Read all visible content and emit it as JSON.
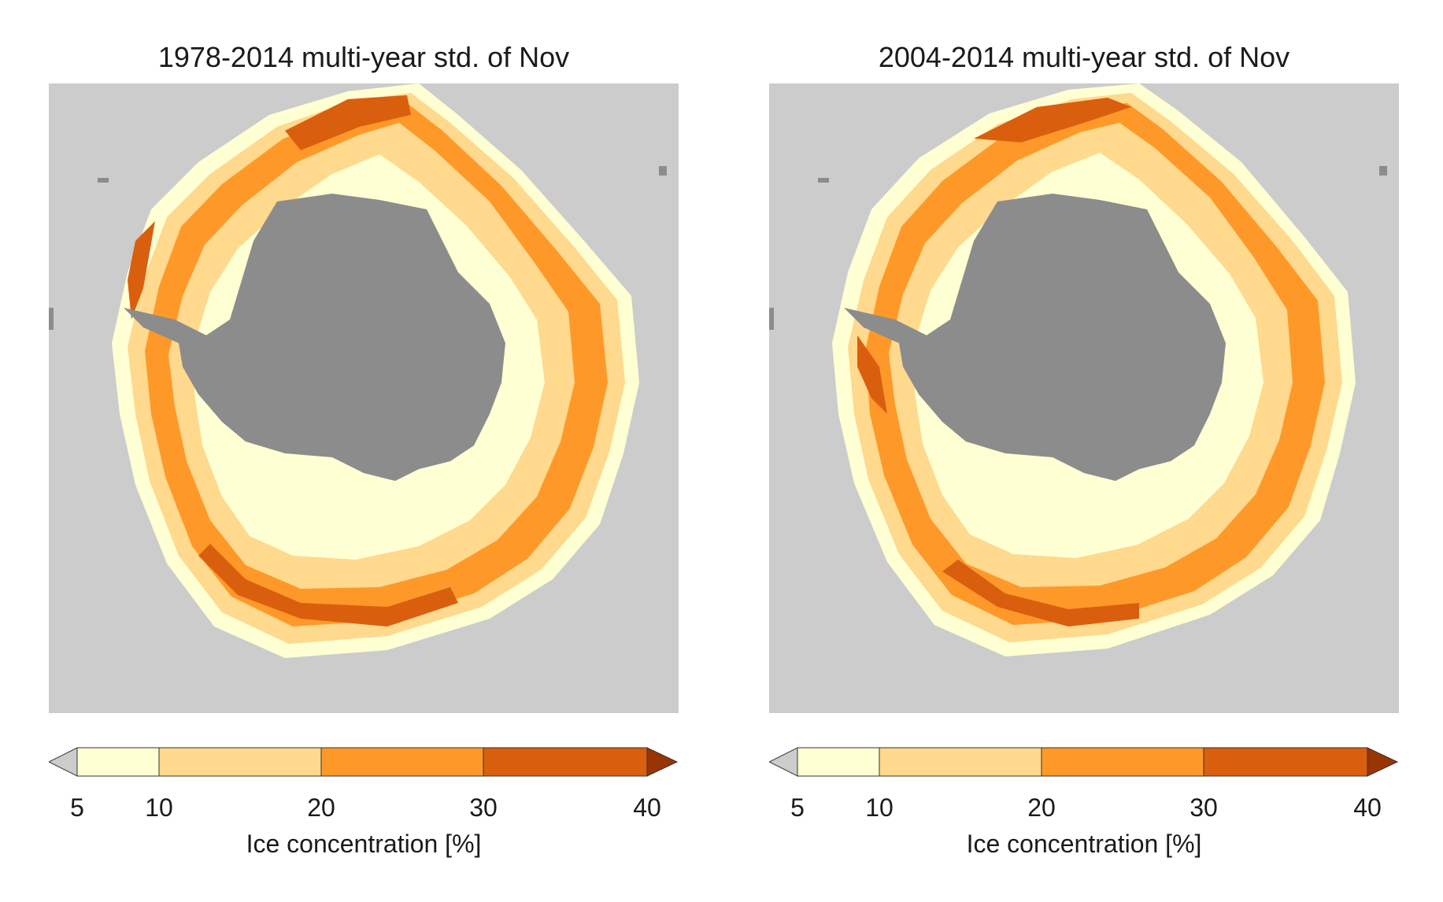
{
  "panels": [
    {
      "title": "1978-2014 multi-year std. of Nov"
    },
    {
      "title": "2004-2014 multi-year std. of Nov"
    }
  ],
  "colorbar": {
    "label": "Ice concentration [%]",
    "ticks": [
      "5",
      "10",
      "20",
      "30",
      "40"
    ],
    "bins": [
      {
        "range": "<5",
        "color": "#cccccc"
      },
      {
        "range": "5-10",
        "color": "#ffffd4"
      },
      {
        "range": "10-20",
        "color": "#fed98e"
      },
      {
        "range": "20-30",
        "color": "#fe9929"
      },
      {
        "range": "30-40",
        "color": "#d95f0e"
      },
      {
        "range": ">40",
        "color": "#993404"
      }
    ]
  },
  "colors": {
    "ocean_background": "#cccccc",
    "land": "#8c8c8c",
    "ice_edge": "#ffffd4"
  }
}
